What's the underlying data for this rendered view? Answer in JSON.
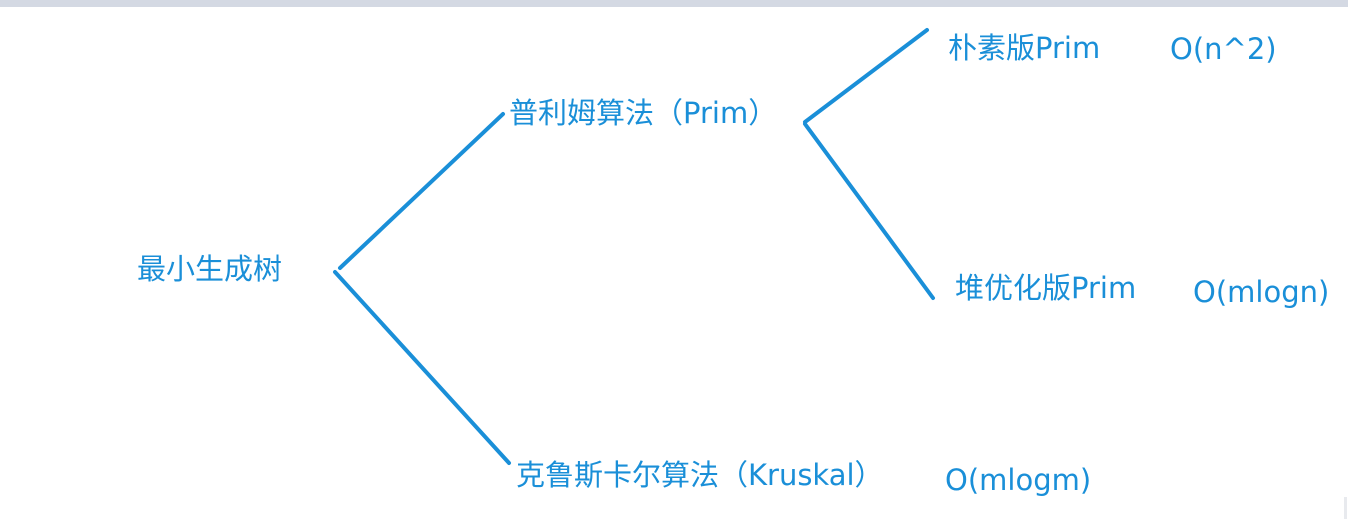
{
  "diagram": {
    "root_label": "最小生成树",
    "branches": {
      "prim": {
        "label": "普利姆算法（Prim）",
        "variants": [
          {
            "label": "朴素版Prim",
            "complexity": "O(n^2)"
          },
          {
            "label": "堆优化版Prim",
            "complexity": "O(mlogn)"
          }
        ]
      },
      "kruskal": {
        "label": "克鲁斯卡尔算法（Kruskal）",
        "complexity": "O(mlogm)"
      }
    },
    "colors": {
      "line": "#1a8fd8",
      "text": "#1a8fd8",
      "top_bar": "#d4d9e3"
    }
  }
}
